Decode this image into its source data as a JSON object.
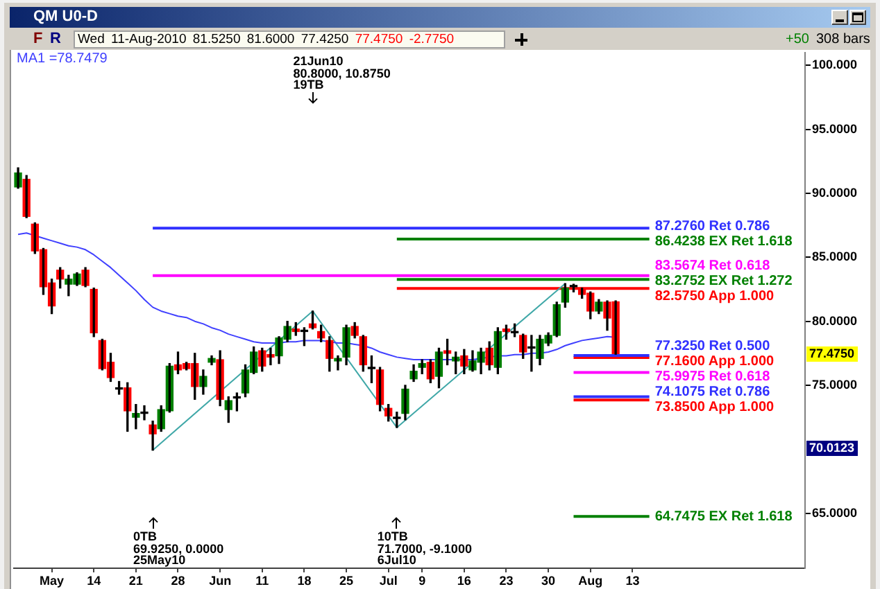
{
  "chart_data": {
    "type": "candlestick",
    "title": "QM U0-D",
    "subtitle": "Wed 11-Aug-2010 81.5250 81.6000 77.4250 77.4750 -2.7750",
    "categories": [
      null,
      null,
      null,
      null,
      "May",
      null,
      null,
      null,
      null,
      "14",
      null,
      null,
      null,
      null,
      "21",
      null,
      null,
      null,
      null,
      "28",
      null,
      null,
      null,
      null,
      "Jun",
      null,
      null,
      null,
      null,
      "11",
      null,
      null,
      null,
      null,
      "18",
      null,
      null,
      null,
      null,
      "25",
      null,
      null,
      null,
      null,
      "Jul",
      null,
      null,
      null,
      "9",
      null,
      null,
      null,
      null,
      "16",
      null,
      null,
      null,
      null,
      "23",
      null,
      null,
      null,
      null,
      "30",
      null,
      null,
      null,
      null,
      "Aug",
      null,
      null,
      null,
      null,
      "13",
      null,
      null,
      null,
      null,
      null,
      null,
      null,
      null,
      null,
      null,
      null,
      null,
      null,
      null,
      null,
      null,
      null,
      null,
      null,
      null
    ],
    "ohlc": [
      [
        90.5,
        92.0,
        90.4,
        91.6
      ],
      [
        91.1,
        91.4,
        88.1,
        88.2
      ],
      [
        87.6,
        87.7,
        85.3,
        85.5
      ],
      [
        85.6,
        85.7,
        82.1,
        82.7
      ],
      [
        83.0,
        83.3,
        80.6,
        81.2
      ],
      [
        84.0,
        84.2,
        82.6,
        83.3
      ],
      [
        82.9,
        83.6,
        82.0,
        83.3
      ],
      [
        82.9,
        83.8,
        82.8,
        83.7
      ],
      [
        84.0,
        84.2,
        82.7,
        82.8
      ],
      [
        82.5,
        82.6,
        78.8,
        79.1
      ],
      [
        78.5,
        78.6,
        76.2,
        76.3
      ],
      [
        76.8,
        77.5,
        75.3,
        75.6
      ],
      [
        74.7,
        75.3,
        74.3,
        74.7
      ],
      [
        74.8,
        75.2,
        71.4,
        73.0
      ],
      [
        72.5,
        73.5,
        71.6,
        72.8
      ],
      [
        72.8,
        73.4,
        72.3,
        72.8
      ],
      [
        71.9,
        72.2,
        69.925,
        71.2
      ],
      [
        71.6,
        73.4,
        71.4,
        73.1
      ],
      [
        73.0,
        76.7,
        72.9,
        76.5
      ],
      [
        76.6,
        77.6,
        75.9,
        76.2
      ],
      [
        76.7,
        76.8,
        76.2,
        76.3
      ],
      [
        76.7,
        77.5,
        73.9,
        74.9
      ],
      [
        74.9,
        76.2,
        74.3,
        75.7
      ],
      [
        76.8,
        77.3,
        76.6,
        77.1
      ],
      [
        77.0,
        77.7,
        73.4,
        73.9
      ],
      [
        73.1,
        74.1,
        72.1,
        73.8
      ],
      [
        74.0,
        74.4,
        73.0,
        74.0
      ],
      [
        74.4,
        76.6,
        74.1,
        76.2
      ],
      [
        76.0,
        78.0,
        75.9,
        77.6
      ],
      [
        77.7,
        77.9,
        76.1,
        76.5
      ],
      [
        77.4,
        77.9,
        76.6,
        77.2
      ],
      [
        77.3,
        78.8,
        76.7,
        78.7
      ],
      [
        78.6,
        80.0,
        78.4,
        79.6
      ],
      [
        79.4,
        79.9,
        78.9,
        79.2
      ],
      [
        79.2,
        79.5,
        78.1,
        79.2
      ],
      [
        79.8,
        80.8,
        79.4,
        79.5
      ],
      [
        79.2,
        79.7,
        78.4,
        78.7
      ],
      [
        78.5,
        78.8,
        76.1,
        77.1
      ],
      [
        76.9,
        77.3,
        76.2,
        77.1
      ],
      [
        77.2,
        79.7,
        76.6,
        79.5
      ],
      [
        79.6,
        79.9,
        78.7,
        78.9
      ],
      [
        78.8,
        78.9,
        76.1,
        76.6
      ],
      [
        76.3,
        77.3,
        75.2,
        76.3
      ],
      [
        76.2,
        76.4,
        73.0,
        73.5
      ],
      [
        73.2,
        73.5,
        72.2,
        72.6
      ],
      [
        72.4,
        72.9,
        71.7,
        72.4
      ],
      [
        72.8,
        75.0,
        72.3,
        74.7
      ],
      [
        75.5,
        76.6,
        75.3,
        76.1
      ],
      [
        76.4,
        77.0,
        75.9,
        76.7
      ],
      [
        76.8,
        77.0,
        75.2,
        75.5
      ],
      [
        75.7,
        77.9,
        74.8,
        77.6
      ],
      [
        77.7,
        78.6,
        76.6,
        77.5
      ],
      [
        76.9,
        77.6,
        75.9,
        77.2
      ],
      [
        77.3,
        77.8,
        75.9,
        76.5
      ],
      [
        76.2,
        77.7,
        76.1,
        76.9
      ],
      [
        76.8,
        77.9,
        75.9,
        77.6
      ],
      [
        77.9,
        78.4,
        76.2,
        76.6
      ],
      [
        76.4,
        79.5,
        75.9,
        79.2
      ],
      [
        79.4,
        79.7,
        78.6,
        79.2
      ],
      [
        79.1,
        79.8,
        78.8,
        79.1
      ],
      [
        78.9,
        79.0,
        77.1,
        77.6
      ],
      [
        77.9,
        78.9,
        76.1,
        77.9
      ],
      [
        77.1,
        78.9,
        76.6,
        78.6
      ],
      [
        78.3,
        79.1,
        78.1,
        78.9
      ],
      [
        78.9,
        81.5,
        78.8,
        81.3
      ],
      [
        81.5,
        82.95,
        81.1,
        82.6
      ],
      [
        82.7,
        82.9,
        82.3,
        82.7
      ],
      [
        82.5,
        82.6,
        81.8,
        82.1
      ],
      [
        82.2,
        82.3,
        80.2,
        80.8
      ],
      [
        80.8,
        81.7,
        80.6,
        81.5
      ],
      [
        81.5,
        81.6,
        79.3,
        80.25
      ],
      [
        81.525,
        81.6,
        77.425,
        77.475
      ],
      null,
      null,
      null,
      null,
      null,
      null,
      null,
      null,
      null,
      null,
      null,
      null,
      null,
      null,
      null,
      null,
      null,
      null,
      null,
      null,
      null,
      null
    ],
    "series": [
      {
        "name": "MA1",
        "type": "line",
        "color": "#4040ff",
        "values": [
          86.8,
          86.9,
          86.7,
          86.5,
          86.3,
          86.1,
          85.9,
          85.8,
          85.6,
          85.2,
          84.7,
          84.2,
          83.6,
          83.0,
          82.4,
          81.7,
          81.1,
          80.8,
          80.6,
          80.4,
          80.3,
          80.0,
          79.8,
          79.5,
          79.3,
          79.0,
          78.8,
          78.6,
          78.4,
          78.3,
          78.3,
          78.3,
          78.4,
          78.4,
          78.5,
          78.5,
          78.5,
          78.4,
          78.3,
          78.3,
          78.2,
          78.1,
          77.9,
          77.6,
          77.4,
          77.2,
          77.1,
          77.0,
          77.0,
          77.0,
          77.0,
          77.0,
          77.0,
          77.0,
          77.0,
          77.1,
          77.2,
          77.3,
          77.3,
          77.4,
          77.4,
          77.5,
          77.5,
          77.6,
          77.8,
          78.1,
          78.3,
          78.5,
          78.6,
          78.7,
          78.8,
          78.7479,
          null,
          null,
          null,
          null,
          null,
          null,
          null,
          null,
          null,
          null,
          null,
          null,
          null,
          null,
          null,
          null,
          null,
          null,
          null,
          null,
          null,
          null
        ]
      },
      {
        "type": "line",
        "color": "#40a8a8",
        "values": [
          null,
          null,
          null,
          null,
          null,
          null,
          null,
          null,
          null,
          null,
          null,
          null,
          null,
          null,
          null,
          null,
          69.925,
          null,
          null,
          null,
          null,
          null,
          null,
          null,
          null,
          null,
          null,
          null,
          null,
          null,
          null,
          null,
          null,
          null,
          null,
          80.8,
          null,
          null,
          null,
          null,
          null,
          null,
          null,
          null,
          null,
          71.7,
          null,
          null,
          null,
          null,
          null,
          null,
          null,
          null,
          null,
          null,
          null,
          null,
          null,
          null,
          null,
          null,
          null,
          null,
          null,
          82.95,
          null,
          null,
          null,
          null,
          null,
          null,
          null,
          null,
          null,
          null,
          null,
          null,
          null,
          null,
          null,
          null,
          null,
          null,
          null,
          null,
          null,
          null,
          null,
          null,
          null,
          null,
          null,
          null
        ]
      },
      {
        "name": "87.2760 Ret 0.786",
        "type": "line",
        "color": "#3030ff",
        "values": [
          null,
          null,
          null,
          null,
          null,
          null,
          null,
          null,
          null,
          null,
          null,
          null,
          null,
          null,
          null,
          null,
          87.276,
          87.276,
          87.276,
          87.276,
          87.276,
          87.276,
          87.276,
          87.276,
          87.276,
          87.276,
          87.276,
          87.276,
          87.276,
          87.276,
          87.276,
          87.276,
          87.276,
          87.276,
          87.276,
          87.276,
          87.276,
          87.276,
          87.276,
          87.276,
          87.276,
          87.276,
          87.276,
          87.276,
          87.276,
          87.276,
          87.276,
          87.276,
          87.276,
          87.276,
          87.276,
          87.276,
          87.276,
          87.276,
          87.276,
          87.276,
          87.276,
          87.276,
          87.276,
          87.276,
          87.276,
          87.276,
          87.276,
          87.276,
          87.276,
          87.276,
          87.276,
          87.276,
          87.276,
          87.276,
          87.276,
          87.276,
          87.276,
          87.276,
          87.276,
          87.276,
          null,
          null,
          null,
          null,
          null,
          null,
          null,
          null,
          null,
          null,
          null,
          null,
          null,
          null,
          null,
          null,
          null,
          null
        ]
      },
      {
        "name": "86.4238 EX Ret 1.618",
        "type": "line",
        "color": "#008000",
        "values": [
          null,
          null,
          null,
          null,
          null,
          null,
          null,
          null,
          null,
          null,
          null,
          null,
          null,
          null,
          null,
          null,
          null,
          null,
          null,
          null,
          null,
          null,
          null,
          null,
          null,
          null,
          null,
          null,
          null,
          null,
          null,
          null,
          null,
          null,
          null,
          null,
          null,
          null,
          null,
          null,
          null,
          null,
          null,
          null,
          null,
          86.4238,
          86.4238,
          86.4238,
          86.4238,
          86.4238,
          86.4238,
          86.4238,
          86.4238,
          86.4238,
          86.4238,
          86.4238,
          86.4238,
          86.4238,
          86.4238,
          86.4238,
          86.4238,
          86.4238,
          86.4238,
          86.4238,
          86.4238,
          86.4238,
          86.4238,
          86.4238,
          86.4238,
          86.4238,
          86.4238,
          86.4238,
          86.4238,
          86.4238,
          86.4238,
          86.4238,
          null,
          null,
          null,
          null,
          null,
          null,
          null,
          null,
          null,
          null,
          null,
          null,
          null,
          null,
          null,
          null,
          null,
          null
        ]
      },
      {
        "name": "83.5674 Ret 0.618",
        "type": "line",
        "color": "#ff00ff",
        "values": [
          null,
          null,
          null,
          null,
          null,
          null,
          null,
          null,
          null,
          null,
          null,
          null,
          null,
          null,
          null,
          null,
          83.5674,
          83.5674,
          83.5674,
          83.5674,
          83.5674,
          83.5674,
          83.5674,
          83.5674,
          83.5674,
          83.5674,
          83.5674,
          83.5674,
          83.5674,
          83.5674,
          83.5674,
          83.5674,
          83.5674,
          83.5674,
          83.5674,
          83.5674,
          83.5674,
          83.5674,
          83.5674,
          83.5674,
          83.5674,
          83.5674,
          83.5674,
          83.5674,
          83.5674,
          83.5674,
          83.5674,
          83.5674,
          83.5674,
          83.5674,
          83.5674,
          83.5674,
          83.5674,
          83.5674,
          83.5674,
          83.5674,
          83.5674,
          83.5674,
          83.5674,
          83.5674,
          83.5674,
          83.5674,
          83.5674,
          83.5674,
          83.5674,
          83.5674,
          83.5674,
          83.5674,
          83.5674,
          83.5674,
          83.5674,
          83.5674,
          83.5674,
          83.5674,
          83.5674,
          83.5674,
          null,
          null,
          null,
          null,
          null,
          null,
          null,
          null,
          null,
          null,
          null,
          null,
          null,
          null,
          null,
          null,
          null,
          null
        ]
      },
      {
        "name": "83.2752 EX Ret 1.272",
        "type": "line",
        "color": "#008000",
        "values": [
          null,
          null,
          null,
          null,
          null,
          null,
          null,
          null,
          null,
          null,
          null,
          null,
          null,
          null,
          null,
          null,
          null,
          null,
          null,
          null,
          null,
          null,
          null,
          null,
          null,
          null,
          null,
          null,
          null,
          null,
          null,
          null,
          null,
          null,
          null,
          null,
          null,
          null,
          null,
          null,
          null,
          null,
          null,
          null,
          null,
          83.2752,
          83.2752,
          83.2752,
          83.2752,
          83.2752,
          83.2752,
          83.2752,
          83.2752,
          83.2752,
          83.2752,
          83.2752,
          83.2752,
          83.2752,
          83.2752,
          83.2752,
          83.2752,
          83.2752,
          83.2752,
          83.2752,
          83.2752,
          83.2752,
          83.2752,
          83.2752,
          83.2752,
          83.2752,
          83.2752,
          83.2752,
          83.2752,
          83.2752,
          83.2752,
          83.2752,
          null,
          null,
          null,
          null,
          null,
          null,
          null,
          null,
          null,
          null,
          null,
          null,
          null,
          null,
          null,
          null,
          null,
          null
        ]
      },
      {
        "name": "82.5750 App 1.000",
        "type": "line",
        "color": "#ff0000",
        "values": [
          null,
          null,
          null,
          null,
          null,
          null,
          null,
          null,
          null,
          null,
          null,
          null,
          null,
          null,
          null,
          null,
          null,
          null,
          null,
          null,
          null,
          null,
          null,
          null,
          null,
          null,
          null,
          null,
          null,
          null,
          null,
          null,
          null,
          null,
          null,
          null,
          null,
          null,
          null,
          null,
          null,
          null,
          null,
          null,
          null,
          82.575,
          82.575,
          82.575,
          82.575,
          82.575,
          82.575,
          82.575,
          82.575,
          82.575,
          82.575,
          82.575,
          82.575,
          82.575,
          82.575,
          82.575,
          82.575,
          82.575,
          82.575,
          82.575,
          82.575,
          82.575,
          82.575,
          82.575,
          82.575,
          82.575,
          82.575,
          82.575,
          82.575,
          82.575,
          82.575,
          82.575,
          null,
          null,
          null,
          null,
          null,
          null,
          null,
          null,
          null,
          null,
          null,
          null,
          null,
          null,
          null,
          null,
          null,
          null
        ]
      },
      {
        "name": "77.3250 Ret 0.500",
        "type": "line",
        "color": "#3030ff",
        "values": [
          null,
          null,
          null,
          null,
          null,
          null,
          null,
          null,
          null,
          null,
          null,
          null,
          null,
          null,
          null,
          null,
          null,
          null,
          null,
          null,
          null,
          null,
          null,
          null,
          null,
          null,
          null,
          null,
          null,
          null,
          null,
          null,
          null,
          null,
          null,
          null,
          null,
          null,
          null,
          null,
          null,
          null,
          null,
          null,
          null,
          null,
          null,
          null,
          null,
          null,
          null,
          null,
          null,
          null,
          null,
          null,
          null,
          null,
          null,
          null,
          null,
          null,
          null,
          null,
          null,
          null,
          77.325,
          77.325,
          77.325,
          77.325,
          77.325,
          77.325,
          77.325,
          77.325,
          77.325,
          77.325,
          null,
          null,
          null,
          null,
          null,
          null,
          null,
          null,
          null,
          null,
          null,
          null,
          null,
          null,
          null,
          null,
          null,
          null
        ]
      },
      {
        "name": "77.1600 App 1.000",
        "type": "line",
        "color": "#ff0000",
        "values": [
          null,
          null,
          null,
          null,
          null,
          null,
          null,
          null,
          null,
          null,
          null,
          null,
          null,
          null,
          null,
          null,
          null,
          null,
          null,
          null,
          null,
          null,
          null,
          null,
          null,
          null,
          null,
          null,
          null,
          null,
          null,
          null,
          null,
          null,
          null,
          null,
          null,
          null,
          null,
          null,
          null,
          null,
          null,
          null,
          null,
          null,
          null,
          null,
          null,
          null,
          null,
          null,
          null,
          null,
          null,
          null,
          null,
          null,
          null,
          null,
          null,
          null,
          null,
          null,
          null,
          null,
          77.16,
          77.16,
          77.16,
          77.16,
          77.16,
          77.16,
          77.16,
          77.16,
          77.16,
          77.16,
          null,
          null,
          null,
          null,
          null,
          null,
          null,
          null,
          null,
          null,
          null,
          null,
          null,
          null,
          null,
          null,
          null,
          null
        ]
      },
      {
        "name": "75.9975 Ret 0.618",
        "type": "line",
        "color": "#ff00ff",
        "values": [
          null,
          null,
          null,
          null,
          null,
          null,
          null,
          null,
          null,
          null,
          null,
          null,
          null,
          null,
          null,
          null,
          null,
          null,
          null,
          null,
          null,
          null,
          null,
          null,
          null,
          null,
          null,
          null,
          null,
          null,
          null,
          null,
          null,
          null,
          null,
          null,
          null,
          null,
          null,
          null,
          null,
          null,
          null,
          null,
          null,
          null,
          null,
          null,
          null,
          null,
          null,
          null,
          null,
          null,
          null,
          null,
          null,
          null,
          null,
          null,
          null,
          null,
          null,
          null,
          null,
          null,
          75.9975,
          75.9975,
          75.9975,
          75.9975,
          75.9975,
          75.9975,
          75.9975,
          75.9975,
          75.9975,
          75.9975,
          null,
          null,
          null,
          null,
          null,
          null,
          null,
          null,
          null,
          null,
          null,
          null,
          null,
          null,
          null,
          null,
          null,
          null
        ]
      },
      {
        "name": "74.1075 Ret 0.786",
        "type": "line",
        "color": "#3030ff",
        "values": [
          null,
          null,
          null,
          null,
          null,
          null,
          null,
          null,
          null,
          null,
          null,
          null,
          null,
          null,
          null,
          null,
          null,
          null,
          null,
          null,
          null,
          null,
          null,
          null,
          null,
          null,
          null,
          null,
          null,
          null,
          null,
          null,
          null,
          null,
          null,
          null,
          null,
          null,
          null,
          null,
          null,
          null,
          null,
          null,
          null,
          null,
          null,
          null,
          null,
          null,
          null,
          null,
          null,
          null,
          null,
          null,
          null,
          null,
          null,
          null,
          null,
          null,
          null,
          null,
          null,
          null,
          74.1075,
          74.1075,
          74.1075,
          74.1075,
          74.1075,
          74.1075,
          74.1075,
          74.1075,
          74.1075,
          74.1075,
          null,
          null,
          null,
          null,
          null,
          null,
          null,
          null,
          null,
          null,
          null,
          null,
          null,
          null,
          null,
          null,
          null,
          null
        ]
      },
      {
        "name": "73.8500 App 1.000",
        "type": "line",
        "color": "#ff0000",
        "values": [
          null,
          null,
          null,
          null,
          null,
          null,
          null,
          null,
          null,
          null,
          null,
          null,
          null,
          null,
          null,
          null,
          null,
          null,
          null,
          null,
          null,
          null,
          null,
          null,
          null,
          null,
          null,
          null,
          null,
          null,
          null,
          null,
          null,
          null,
          null,
          null,
          null,
          null,
          null,
          null,
          null,
          null,
          null,
          null,
          null,
          null,
          null,
          null,
          null,
          null,
          null,
          null,
          null,
          null,
          null,
          null,
          null,
          null,
          null,
          null,
          null,
          null,
          null,
          null,
          null,
          null,
          73.85,
          73.85,
          73.85,
          73.85,
          73.85,
          73.85,
          73.85,
          73.85,
          73.85,
          73.85,
          null,
          null,
          null,
          null,
          null,
          null,
          null,
          null,
          null,
          null,
          null,
          null,
          null,
          null,
          null,
          null,
          null,
          null
        ]
      },
      {
        "name": "64.7475 EX Ret 1.618",
        "type": "line",
        "color": "#008000",
        "values": [
          null,
          null,
          null,
          null,
          null,
          null,
          null,
          null,
          null,
          null,
          null,
          null,
          null,
          null,
          null,
          null,
          null,
          null,
          null,
          null,
          null,
          null,
          null,
          null,
          null,
          null,
          null,
          null,
          null,
          null,
          null,
          null,
          null,
          null,
          null,
          null,
          null,
          null,
          null,
          null,
          null,
          null,
          null,
          null,
          null,
          null,
          null,
          null,
          null,
          null,
          null,
          null,
          null,
          null,
          null,
          null,
          null,
          null,
          null,
          null,
          null,
          null,
          null,
          null,
          null,
          null,
          64.7475,
          64.7475,
          64.7475,
          64.7475,
          64.7475,
          64.7475,
          64.7475,
          64.7475,
          64.7475,
          64.7475,
          null,
          null,
          null,
          null,
          null,
          null,
          null,
          null,
          null,
          null,
          null,
          null,
          null,
          null,
          null,
          null,
          null,
          null
        ]
      }
    ],
    "ylim": [
      60.7,
      101.0
    ],
    "yticks": [
      {
        "value": 65,
        "label": "65.0000"
      },
      {
        "value": 75,
        "label": "75.0000"
      },
      {
        "value": 80,
        "label": "80.0000"
      },
      {
        "value": 85,
        "label": "85.0000"
      },
      {
        "value": 90,
        "label": "90.0000"
      },
      {
        "value": 95,
        "label": "95.0000"
      },
      {
        "value": 100,
        "label": "100.000"
      }
    ],
    "legend": "top left",
    "annotations": [
      "F",
      "R",
      "+50",
      "308 bars",
      "=78.7479",
      "0TB\n69.9250, 0.0000\n25May10",
      "21Jun10\n80.8000, 10.8750\n19TB",
      "10TB\n71.7000, -9.1000\n6Jul10",
      "77.4750",
      "70.0123"
    ]
  }
}
